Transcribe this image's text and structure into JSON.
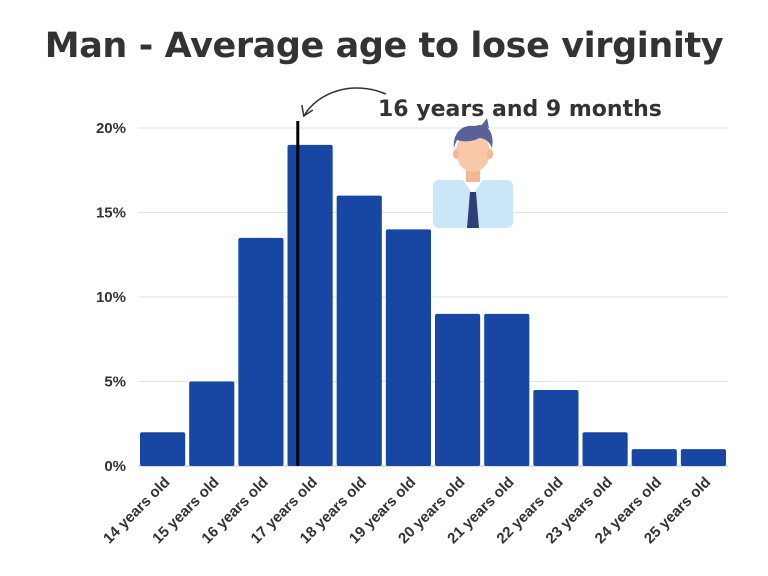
{
  "chart_data": {
    "type": "bar",
    "title": "Man - Average age to lose virginity",
    "xlabel": "",
    "ylabel": "",
    "categories": [
      "14 years old",
      "15 years old",
      "16 years old",
      "17 years old",
      "18 years old",
      "19 years old",
      "20 years old",
      "21 years old",
      "22 years old",
      "23 years old",
      "24 years old",
      "25 years old"
    ],
    "values": [
      2,
      5,
      13.5,
      19,
      16,
      14,
      9,
      9,
      4.5,
      2,
      1,
      1
    ],
    "ylim": [
      0,
      20
    ],
    "yticks": [
      0,
      5,
      10,
      15,
      20
    ],
    "ytick_labels": [
      "0%",
      "5%",
      "10%",
      "15%",
      "20%"
    ],
    "grid": true,
    "bar_color": "#1846a3",
    "annotation": {
      "text": "16 years and 9 months",
      "x_value": 16.75
    }
  },
  "icons": {
    "man": "man-avatar-icon"
  }
}
